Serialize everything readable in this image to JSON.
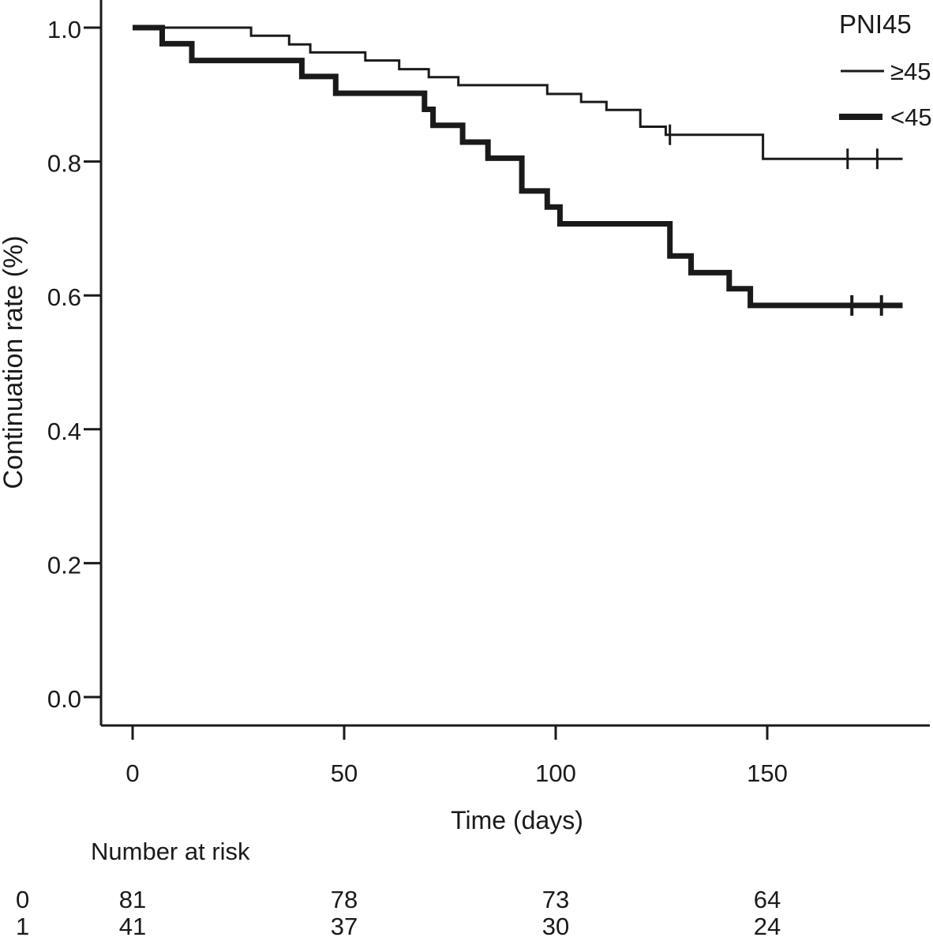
{
  "figure": {
    "ink_color": "#1a1a1a",
    "background_color": "#ffffff"
  },
  "chart_data": {
    "type": "line",
    "subtype": "kaplan-meier-step-survival",
    "title": "",
    "xlabel": "Time (days)",
    "ylabel": "Continuation rate (%)",
    "xlim": [
      0,
      185
    ],
    "ylim": [
      0.0,
      1.0
    ],
    "x_ticks": [
      0,
      50,
      100,
      150
    ],
    "x_tick_labels": [
      "0",
      "50",
      "100",
      "150"
    ],
    "y_ticks": [
      1.0,
      0.8,
      0.6,
      0.4,
      0.2,
      0.0
    ],
    "y_tick_labels": [
      "1.0",
      "0.8",
      "0.6",
      "0.4",
      "0.2",
      "0.0"
    ],
    "grid": false,
    "legend_title": "PNI45",
    "legend_position": "top-right",
    "series": [
      {
        "name": "≥45",
        "line": "thin",
        "steps": [
          [
            0,
            1.0
          ],
          [
            28,
            0.988
          ],
          [
            37,
            0.975
          ],
          [
            42,
            0.963
          ],
          [
            55,
            0.951
          ],
          [
            63,
            0.938
          ],
          [
            70,
            0.926
          ],
          [
            77,
            0.914
          ],
          [
            98,
            0.901
          ],
          [
            106,
            0.889
          ],
          [
            112,
            0.877
          ],
          [
            120,
            0.852
          ],
          [
            126,
            0.84
          ],
          [
            149,
            0.804
          ],
          [
            182,
            0.804
          ]
        ],
        "censor_marks": [
          [
            127,
            0.84
          ],
          [
            169,
            0.804
          ],
          [
            176,
            0.804
          ]
        ]
      },
      {
        "name": "<45",
        "line": "thick",
        "steps": [
          [
            0,
            1.0
          ],
          [
            7,
            0.976
          ],
          [
            14,
            0.951
          ],
          [
            40,
            0.927
          ],
          [
            48,
            0.902
          ],
          [
            69,
            0.878
          ],
          [
            71,
            0.854
          ],
          [
            78,
            0.829
          ],
          [
            84,
            0.805
          ],
          [
            92,
            0.756
          ],
          [
            98,
            0.732
          ],
          [
            101,
            0.707
          ],
          [
            127,
            0.659
          ],
          [
            132,
            0.634
          ],
          [
            141,
            0.61
          ],
          [
            146,
            0.585
          ],
          [
            182,
            0.585
          ]
        ],
        "censor_marks": [
          [
            170,
            0.585
          ],
          [
            177,
            0.585
          ]
        ]
      }
    ],
    "number_at_risk": {
      "title": "Number at risk",
      "times": [
        0,
        50,
        100,
        150
      ],
      "rows": [
        {
          "label": "0",
          "counts": [
            "81",
            "78",
            "73",
            "64"
          ]
        },
        {
          "label": "1",
          "counts": [
            "41",
            "37",
            "30",
            "24"
          ]
        }
      ]
    }
  }
}
